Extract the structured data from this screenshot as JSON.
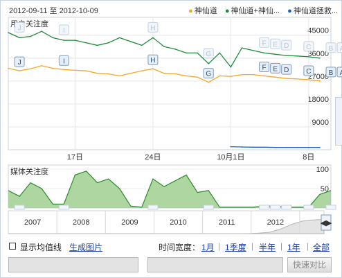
{
  "header": {
    "date_range": "2012-09-11 至 2012-10-09",
    "legend": [
      {
        "label": "神仙道",
        "color": "#f5a623"
      },
      {
        "label": "神仙道+神仙...",
        "color": "#1e8a3c"
      },
      {
        "label": "神仙道拯救...",
        "color": "#1f5fbf"
      }
    ]
  },
  "chart_data": [
    {
      "type": "line",
      "title": "用户关注度",
      "xlabel": "",
      "ylabel": "",
      "ylim": [
        0,
        52000
      ],
      "yticks": [
        9000,
        18000,
        27000,
        36000,
        45000
      ],
      "ytick_labels": [
        "9000",
        "18000",
        "27000",
        "36000",
        "45000"
      ],
      "x": [
        "09-11",
        "09-12",
        "09-13",
        "09-14",
        "09-15",
        "09-16",
        "09-17",
        "09-18",
        "09-19",
        "09-20",
        "09-21",
        "09-22",
        "09-23",
        "09-24",
        "09-25",
        "09-26",
        "09-27",
        "09-28",
        "09-29",
        "09-30",
        "10-01",
        "10-02",
        "10-03",
        "10-04",
        "10-05",
        "10-06",
        "10-07",
        "10-08",
        "10-09"
      ],
      "xtick_labels": [
        {
          "index": 6,
          "label": "17日"
        },
        {
          "index": 13,
          "label": "24日"
        },
        {
          "index": 20,
          "label": "10月1日"
        },
        {
          "index": 27,
          "label": "8日"
        }
      ],
      "series": [
        {
          "name": "神仙道+神仙...",
          "color": "#1e8a3c",
          "values": [
            46000,
            44000,
            44500,
            46500,
            44000,
            43000,
            43000,
            42000,
            41000,
            42000,
            44000,
            42500,
            41000,
            44000,
            40500,
            39500,
            38000,
            38000,
            33800,
            38000,
            32500,
            40000,
            39000,
            38000,
            37500,
            37000,
            36800,
            36500,
            36000
          ]
        },
        {
          "name": "神仙道",
          "color": "#f5a623",
          "values": [
            32000,
            31000,
            31800,
            33000,
            32000,
            31500,
            31200,
            31000,
            30000,
            29800,
            29000,
            30000,
            31000,
            31800,
            30000,
            29800,
            29000,
            28500,
            26500,
            29000,
            28800,
            29500,
            29500,
            29000,
            28500,
            28000,
            27800,
            27500,
            27000
          ]
        },
        {
          "name": "神仙道拯救...",
          "color": "#1f5fbf",
          "values": [
            null,
            null,
            null,
            null,
            null,
            null,
            null,
            null,
            null,
            null,
            null,
            null,
            null,
            null,
            null,
            null,
            null,
            null,
            null,
            null,
            1200,
            1100,
            1000,
            1000,
            900,
            900,
            900,
            900,
            900
          ]
        }
      ],
      "events": [
        {
          "label": "J",
          "index": 1
        },
        {
          "label": "I",
          "index": 5
        },
        {
          "label": "H",
          "index": 13
        },
        {
          "label": "G",
          "index": 18
        },
        {
          "label": "F",
          "index": 23
        },
        {
          "label": "E",
          "index": 24
        },
        {
          "label": "D",
          "index": 25
        },
        {
          "label": "C",
          "index": 27
        },
        {
          "label": "B",
          "index": 29
        },
        {
          "label": "A",
          "index": 30
        }
      ],
      "grid": true
    },
    {
      "type": "area",
      "title": "媒体关注度",
      "ylim": [
        0,
        100
      ],
      "yticks": [
        50,
        100
      ],
      "ytick_labels": [
        "50",
        "100"
      ],
      "color": "#2b8a2b",
      "values": [
        45,
        30,
        65,
        50,
        10,
        10,
        85,
        95,
        65,
        75,
        50,
        5,
        2,
        75,
        55,
        70,
        85,
        40,
        45,
        2,
        2,
        2,
        2,
        5,
        5,
        2,
        2,
        2,
        35,
        45
      ]
    },
    {
      "type": "area",
      "title": "",
      "x_labels": [
        "2007",
        "2008",
        "2009",
        "2010",
        "2011",
        "2012"
      ],
      "values": [
        0,
        0,
        0,
        0,
        0,
        0,
        0,
        0,
        0,
        0,
        0,
        0,
        0,
        0,
        0,
        0,
        0,
        0,
        0,
        0,
        0,
        0,
        0,
        2,
        6,
        20,
        40,
        55,
        60,
        62
      ],
      "color": "#b3b3b3"
    }
  ],
  "controls": {
    "show_average_label": "显示均值线",
    "generate_image_label": "生成图片",
    "time_range_label": "时间宽度：",
    "time_options": [
      "1月",
      "1季度",
      "半年",
      "1年",
      "全部"
    ],
    "compare_button": "快速对比"
  }
}
